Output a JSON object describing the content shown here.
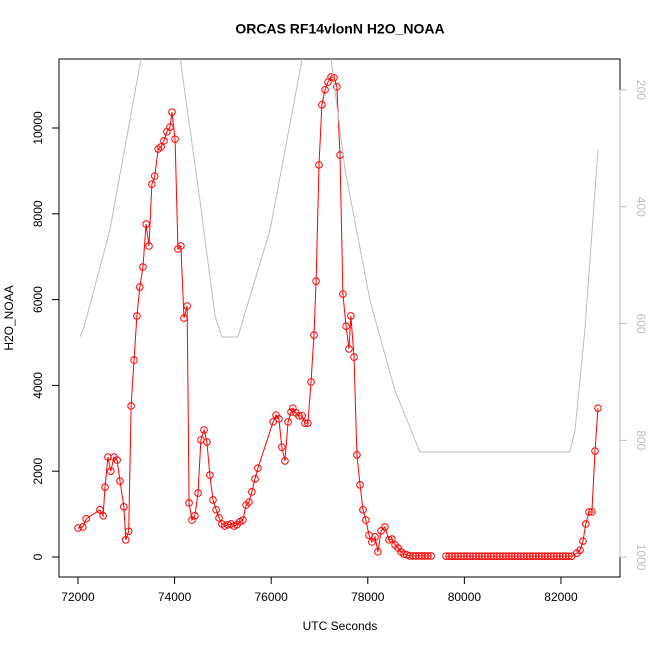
{
  "chart_data": {
    "type": "line",
    "title": "ORCAS RF14vlonN H2O_NOAA",
    "x_label": "UTC Seconds",
    "y_label": "H2O_NOAA",
    "xlim": [
      71607,
      83222
    ],
    "ylim": [
      -466,
      11608
    ],
    "y2lim": [
      1034,
      147
    ],
    "xticks": [
      72000,
      74000,
      76000,
      78000,
      80000,
      82000
    ],
    "yticks": [
      0,
      2000,
      4000,
      6000,
      8000,
      10000
    ],
    "y2ticks": [
      200,
      400,
      600,
      800,
      1000
    ],
    "series": [
      {
        "color": "#ff0000",
        "marker": "circle",
        "x": [
          72000,
          72100,
          72170,
          72455,
          72520,
          72560,
          72620,
          72680,
          72745,
          72810,
          72870,
          72950,
          72990,
          73050,
          73100,
          73160,
          73220,
          73280,
          73345,
          73410,
          73470,
          73530,
          73590,
          73660,
          73720,
          73780,
          73840,
          73905,
          73946,
          74010,
          74070,
          74130,
          74195,
          74260,
          74300,
          74360,
          74420,
          74485,
          74545,
          74610,
          74670,
          74730,
          74795,
          74860,
          74920,
          74980,
          75040,
          75105,
          75170,
          75230,
          75290,
          75350,
          75415,
          75480,
          75540,
          75600,
          75665,
          75725,
          76040,
          76100,
          76160,
          76220,
          76285,
          76350,
          76410,
          76450,
          76510,
          76575,
          76640,
          76700,
          76760,
          76825,
          76885,
          76930,
          76990,
          77050,
          77115,
          77175,
          77240,
          77300,
          77360,
          77425,
          77485,
          77550,
          77610,
          77650,
          77715,
          77775,
          77840,
          77900,
          77960,
          78025,
          78085,
          78150,
          78210,
          78275,
          78355,
          78440,
          78500,
          78565,
          78625,
          78690,
          78750,
          78810,
          78870,
          78935,
          78995,
          79060,
          79120,
          79185,
          79245,
          79310,
          79480,
          79620,
          79682,
          79744,
          79806,
          79868,
          79930,
          79992,
          80054,
          80116,
          80178,
          80240,
          80302,
          80364,
          80426,
          80488,
          80550,
          80612,
          80674,
          80736,
          80798,
          80860,
          80922,
          80984,
          81046,
          81108,
          81170,
          81232,
          81294,
          81356,
          81418,
          81480,
          81542,
          81604,
          81666,
          81728,
          81790,
          81852,
          81914,
          81976,
          82038,
          82100,
          82162,
          82224,
          82330,
          82395,
          82455,
          82515,
          82580,
          82640,
          82705,
          82765
        ],
        "values": [
          676,
          700,
          890,
          1100,
          960,
          1630,
          2330,
          2000,
          2330,
          2260,
          1770,
          1170,
          400,
          600,
          3520,
          4590,
          5620,
          6290,
          6760,
          7760,
          7250,
          8690,
          8880,
          9510,
          9560,
          9700,
          9910,
          10020,
          10370,
          9740,
          7180,
          7250,
          5570,
          5850,
          1260,
          860,
          960,
          1490,
          2730,
          2960,
          2680,
          1910,
          1330,
          1100,
          910,
          770,
          720,
          750,
          770,
          720,
          750,
          820,
          860,
          1210,
          1280,
          1520,
          1820,
          2070,
          3150,
          3310,
          3220,
          2560,
          2240,
          3150,
          3380,
          3470,
          3360,
          3290,
          3290,
          3120,
          3120,
          4080,
          5170,
          6430,
          9140,
          10540,
          10890,
          11070,
          11190,
          11170,
          10960,
          9370,
          6130,
          5380,
          4850,
          5620,
          4660,
          2380,
          1680,
          1100,
          860,
          510,
          350,
          470,
          120,
          610,
          700,
          400,
          420,
          280,
          210,
          120,
          70,
          50,
          25,
          25,
          25,
          25,
          25,
          25,
          25,
          25,
          null,
          20,
          20,
          20,
          20,
          20,
          20,
          20,
          20,
          20,
          20,
          20,
          20,
          20,
          20,
          20,
          20,
          20,
          20,
          20,
          20,
          20,
          20,
          20,
          20,
          20,
          20,
          20,
          20,
          20,
          20,
          20,
          20,
          20,
          20,
          20,
          20,
          20,
          20,
          20,
          20,
          20,
          20,
          20,
          90,
          160,
          370,
          770,
          1050,
          1050,
          2470,
          3470
        ]
      },
      {
        "color": "#bebebe",
        "axis": "y2",
        "x": [
          72040,
          72125,
          72660,
          73305,
          73345,
          74090,
          74525,
          74835,
          74980,
          75310,
          75975,
          76640,
          76720,
          77215,
          77530,
          78045,
          78560,
          78770,
          79080,
          82185,
          82290,
          82495,
          82765
        ],
        "values": [
          623,
          606,
          440,
          147,
          131,
          131,
          389,
          586,
          623,
          623,
          440,
          147,
          131,
          131,
          337,
          560,
          714,
          757,
          820,
          820,
          783,
          611,
          303
        ]
      }
    ]
  }
}
